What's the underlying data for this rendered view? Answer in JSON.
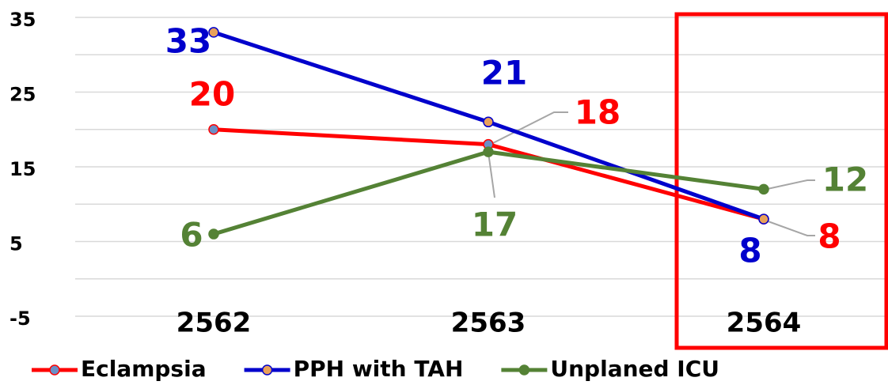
{
  "chart_data": {
    "type": "line",
    "categories": [
      "2562",
      "2563",
      "2564"
    ],
    "series": [
      {
        "name": "Eclampsia",
        "color": "#ff0000",
        "marker_color": "#6a8fc7",
        "values": [
          20,
          18,
          8
        ]
      },
      {
        "name": "PPH with TAH",
        "color": "#0000cc",
        "marker_color": "#e8a05a",
        "values": [
          33,
          21,
          8
        ]
      },
      {
        "name": "Unplaned ICU",
        "color": "#548235",
        "marker_color": "#548235",
        "values": [
          6,
          17,
          12
        ]
      }
    ],
    "ylim": [
      -5,
      35
    ],
    "yticks": [
      -5,
      5,
      15,
      25,
      35
    ],
    "minor_yticks": [
      0,
      10,
      20,
      30
    ],
    "grid": true,
    "legend": "bottom"
  }
}
